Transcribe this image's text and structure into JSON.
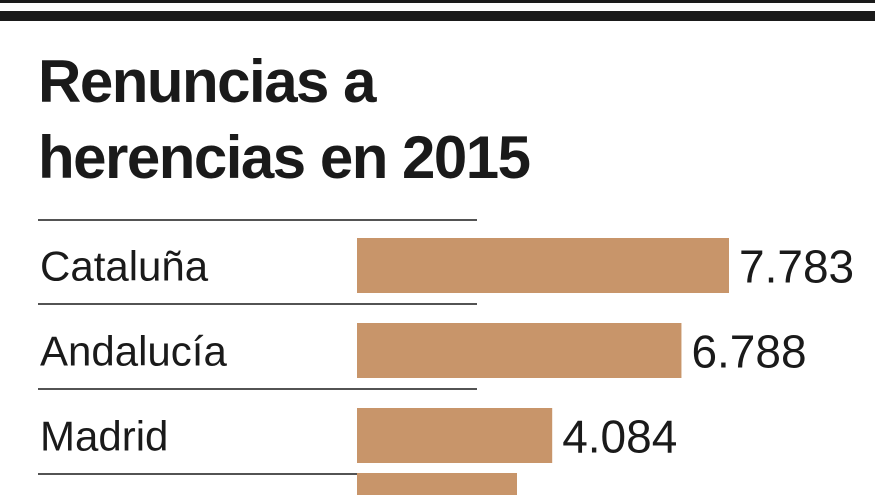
{
  "chart_data": {
    "type": "bar",
    "orientation": "horizontal",
    "title": "Renuncias a\nherencias en 2015",
    "categories": [
      "Cataluña",
      "Andalucía",
      "Madrid"
    ],
    "values": [
      7783,
      6788,
      4084
    ],
    "value_labels": [
      "7.783",
      "6.788",
      "4.084"
    ],
    "xlim": [
      0,
      7783
    ],
    "bar_color": "#c8956a",
    "grid": false,
    "legend": "none"
  },
  "colors": {
    "ink": "#1a1a1a",
    "bar": "#c8956a",
    "background": "#ffffff"
  }
}
